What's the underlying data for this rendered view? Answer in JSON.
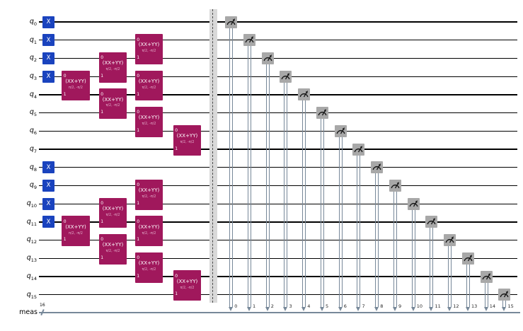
{
  "circuit": {
    "title": "",
    "qubits": [
      {
        "name": "q",
        "sub": "0"
      },
      {
        "name": "q",
        "sub": "1"
      },
      {
        "name": "q",
        "sub": "2"
      },
      {
        "name": "q",
        "sub": "3"
      },
      {
        "name": "q",
        "sub": "4"
      },
      {
        "name": "q",
        "sub": "5"
      },
      {
        "name": "q",
        "sub": "6"
      },
      {
        "name": "q",
        "sub": "7"
      },
      {
        "name": "q",
        "sub": "8"
      },
      {
        "name": "q",
        "sub": "9"
      },
      {
        "name": "q",
        "sub": "10"
      },
      {
        "name": "q",
        "sub": "11"
      },
      {
        "name": "q",
        "sub": "12"
      },
      {
        "name": "q",
        "sub": "13"
      },
      {
        "name": "q",
        "sub": "14"
      },
      {
        "name": "q",
        "sub": "15"
      }
    ],
    "creg": {
      "label": "meas",
      "size": "16"
    },
    "gates": {
      "x": {
        "label": "X",
        "qubits": [
          0,
          1,
          2,
          3,
          8,
          9,
          10,
          11
        ]
      },
      "xxyy": {
        "label": "(XX+YY)",
        "params": "π/2, -π/2",
        "port_top": "0",
        "port_bottom": "1",
        "placements": [
          {
            "column": 0,
            "top_qubit": 3
          },
          {
            "column": 1,
            "top_qubit": 2
          },
          {
            "column": 1,
            "top_qubit": 4
          },
          {
            "column": 2,
            "top_qubit": 1
          },
          {
            "column": 2,
            "top_qubit": 3
          },
          {
            "column": 2,
            "top_qubit": 5
          },
          {
            "column": 3,
            "top_qubit": 6
          },
          {
            "column": 0,
            "top_qubit": 11
          },
          {
            "column": 1,
            "top_qubit": 10
          },
          {
            "column": 1,
            "top_qubit": 12
          },
          {
            "column": 2,
            "top_qubit": 9
          },
          {
            "column": 2,
            "top_qubit": 11
          },
          {
            "column": 2,
            "top_qubit": 13
          },
          {
            "column": 3,
            "top_qubit": 14
          }
        ]
      }
    },
    "measurements": [
      {
        "qubit": 0,
        "bit": "0"
      },
      {
        "qubit": 1,
        "bit": "1"
      },
      {
        "qubit": 2,
        "bit": "2"
      },
      {
        "qubit": 3,
        "bit": "3"
      },
      {
        "qubit": 4,
        "bit": "4"
      },
      {
        "qubit": 5,
        "bit": "5"
      },
      {
        "qubit": 6,
        "bit": "6"
      },
      {
        "qubit": 7,
        "bit": "7"
      },
      {
        "qubit": 8,
        "bit": "8"
      },
      {
        "qubit": 9,
        "bit": "9"
      },
      {
        "qubit": 10,
        "bit": "10"
      },
      {
        "qubit": 11,
        "bit": "11"
      },
      {
        "qubit": 12,
        "bit": "12"
      },
      {
        "qubit": 13,
        "bit": "13"
      },
      {
        "qubit": 14,
        "bit": "14"
      },
      {
        "qubit": 15,
        "bit": "15"
      }
    ],
    "colors": {
      "background": "#FFFFFF",
      "qubit_wire": "#000000",
      "x_gate": "#1A43BE",
      "xxyy_gate": "#A0185C",
      "gate_text": "#FFFFFF",
      "params_text": "#E3AECB",
      "measure_fill": "#A8A8A8",
      "measure_glyph": "#161616",
      "classical_wire": "#778899",
      "barrier_fill": "#D9D9D9",
      "barrier_line": "#4A4A4A",
      "bit_number": "#262626",
      "label_text": "#000000"
    }
  }
}
